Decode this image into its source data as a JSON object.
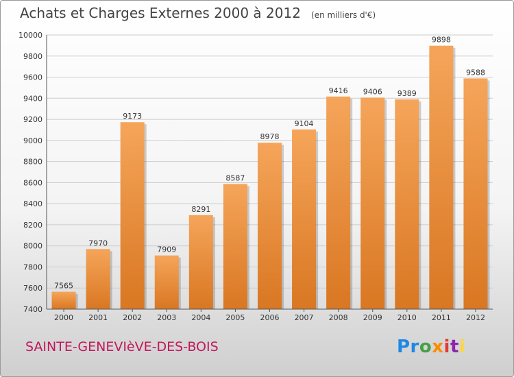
{
  "header": {
    "title": "Achats et Charges Externes 2000 à 2012",
    "unit": "(en milliers d'€)"
  },
  "footer": {
    "city": "SAINTE-GENEVIèVE-DES-BOIS",
    "logo": [
      "Pr",
      "o",
      "x",
      "i",
      "t",
      "i"
    ]
  },
  "colors": {
    "bar_top": "#f5a55a",
    "bar_bottom": "#d97722",
    "grid": "#cccccc",
    "axis": "#555555",
    "city": "#c2185b"
  },
  "chart_data": {
    "type": "bar",
    "title": "Achats et Charges Externes 2000 à 2012",
    "categories": [
      "2000",
      "2001",
      "2002",
      "2003",
      "2004",
      "2005",
      "2006",
      "2007",
      "2008",
      "2009",
      "2010",
      "2011",
      "2012"
    ],
    "values": [
      7565,
      7970,
      9173,
      7909,
      8291,
      8587,
      8978,
      9104,
      9416,
      9406,
      9389,
      9898,
      9588
    ],
    "ylim": [
      7400,
      10000
    ],
    "yticks": [
      7400,
      7600,
      7800,
      8000,
      8200,
      8400,
      8600,
      8800,
      9000,
      9200,
      9400,
      9600,
      9800,
      10000
    ],
    "grid": true,
    "data_labels": true
  }
}
